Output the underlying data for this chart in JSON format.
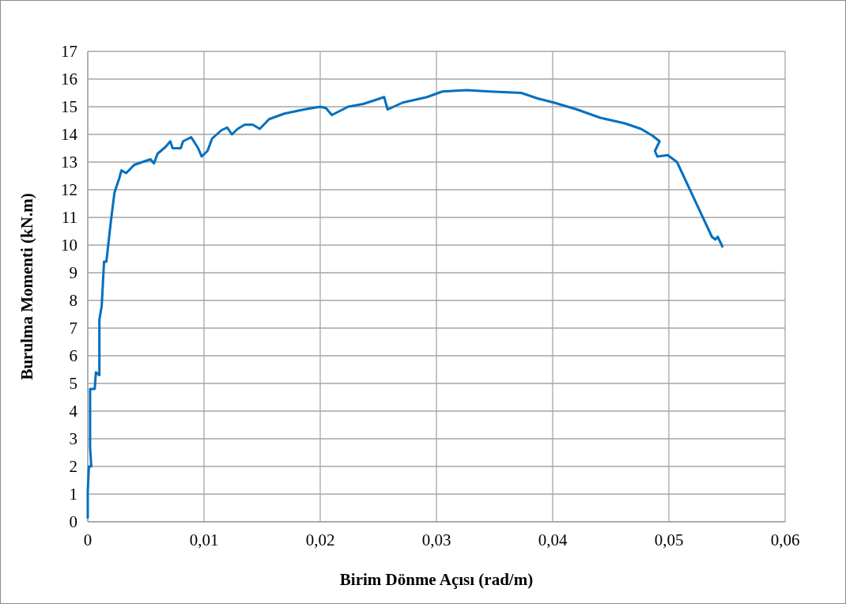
{
  "chart_data": {
    "type": "line",
    "xlabel": "Birim Dönme Açısı (rad/m)",
    "ylabel": "Burulma Momenti (kN.m)",
    "xlim": [
      0,
      0.06
    ],
    "ylim": [
      0,
      17
    ],
    "xticks": [
      0,
      {
        "value": 0.01,
        "label": "0,01"
      },
      {
        "value": 0.02,
        "label": "0,02"
      },
      {
        "value": 0.03,
        "label": "0,03"
      },
      {
        "value": 0.04,
        "label": "0,04"
      },
      {
        "value": 0.05,
        "label": "0,05"
      },
      {
        "value": 0.06,
        "label": "0,06"
      }
    ],
    "yticks": [
      0,
      1,
      2,
      3,
      4,
      5,
      6,
      7,
      8,
      9,
      10,
      11,
      12,
      13,
      14,
      15,
      16,
      17
    ],
    "grid": true,
    "marker": "none",
    "line_style": "solid",
    "series": [
      {
        "color": "#0070c0",
        "x": [
          0,
          0,
          0.0001,
          0.0003,
          0.0002,
          0.0002,
          0.0006,
          0.0007,
          0.001,
          0.001,
          0.0012,
          0.0014,
          0.0016,
          0.002,
          0.0023,
          0.0027,
          0.0029,
          0.0033,
          0.004,
          0.0047,
          0.0054,
          0.0057,
          0.006,
          0.0067,
          0.0071,
          0.0073,
          0.008,
          0.0082,
          0.0089,
          0.0095,
          0.0098,
          0.0103,
          0.0107,
          0.0115,
          0.012,
          0.0124,
          0.0129,
          0.0135,
          0.0142,
          0.0148,
          0.0156,
          0.0169,
          0.0186,
          0.02,
          0.0205,
          0.021,
          0.0224,
          0.0237,
          0.0248,
          0.0255,
          0.0258,
          0.0271,
          0.0292,
          0.0305,
          0.0326,
          0.0346,
          0.0373,
          0.0387,
          0.0401,
          0.0421,
          0.0441,
          0.0462,
          0.0476,
          0.0486,
          0.0492,
          0.0488,
          0.049,
          0.0499,
          0.0507,
          0.0537,
          0.054,
          0.0542,
          0.0546
        ],
        "values": [
          0.15,
          1.1,
          2.0,
          2.0,
          2.7,
          4.8,
          4.8,
          5.4,
          5.3,
          7.3,
          7.8,
          9.4,
          9.4,
          10.9,
          11.9,
          12.4,
          12.7,
          12.6,
          12.9,
          13.0,
          13.1,
          12.95,
          13.3,
          13.55,
          13.75,
          13.5,
          13.5,
          13.75,
          13.9,
          13.5,
          13.2,
          13.4,
          13.85,
          14.15,
          14.25,
          14.0,
          14.2,
          14.35,
          14.35,
          14.2,
          14.55,
          14.75,
          14.9,
          15.0,
          14.95,
          14.7,
          15.0,
          15.1,
          15.25,
          15.35,
          14.9,
          15.15,
          15.35,
          15.55,
          15.6,
          15.55,
          15.5,
          15.3,
          15.15,
          14.9,
          14.6,
          14.4,
          14.2,
          13.95,
          13.75,
          13.4,
          13.2,
          13.25,
          13.0,
          10.3,
          10.2,
          10.3,
          9.95
        ]
      }
    ]
  }
}
